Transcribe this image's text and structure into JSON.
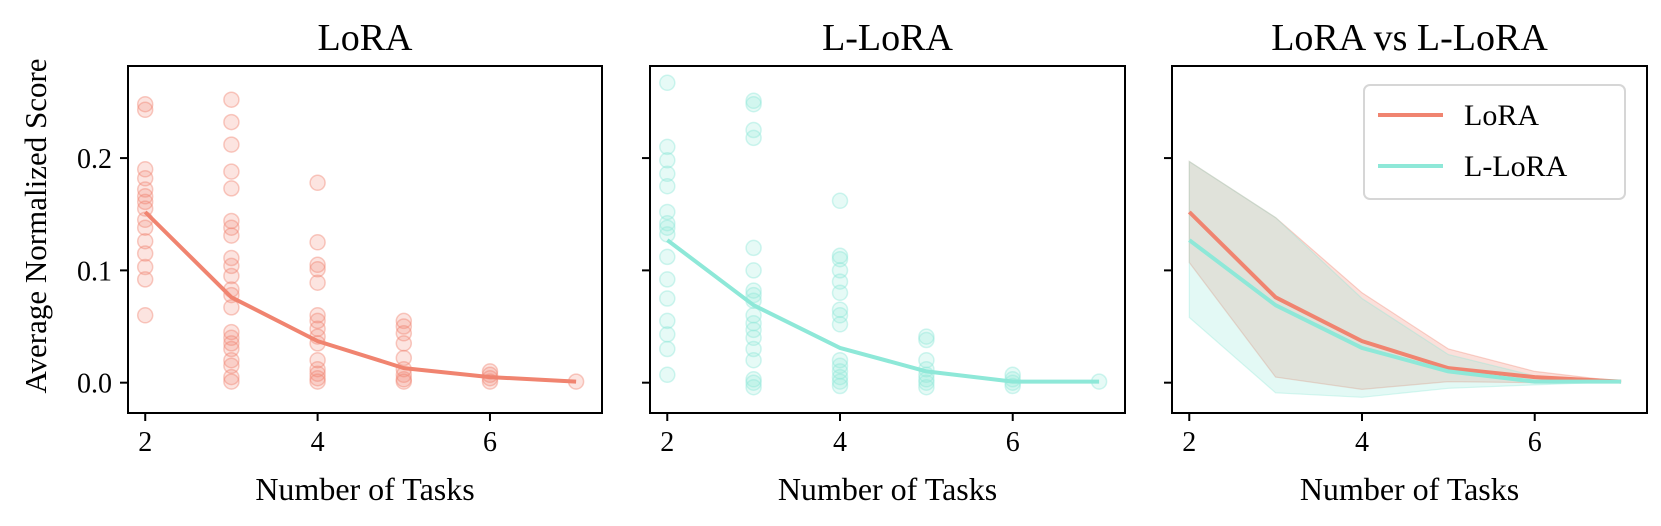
{
  "colors": {
    "lora": "#F08470",
    "llora": "#8EE8D8"
  },
  "figure": {
    "ylabel": "Average Normalized Score"
  },
  "chart_data": [
    {
      "type": "scatter",
      "title": "LoRA",
      "xlabel": "Number of Tasks",
      "ylabel": "Average Normalized Score",
      "xlim": [
        1.8,
        7.3
      ],
      "ylim": [
        -0.027,
        0.282
      ],
      "xticks": [
        2,
        4,
        6
      ],
      "yticks": [
        0.0,
        0.1,
        0.2
      ],
      "ytick_labels": [
        "0.0",
        "0.1",
        "0.2"
      ],
      "series": [
        {
          "color": "#F08470",
          "points": [
            [
              2,
              0.248
            ],
            [
              2,
              0.243
            ],
            [
              2,
              0.19
            ],
            [
              2,
              0.182
            ],
            [
              2,
              0.172
            ],
            [
              2,
              0.166
            ],
            [
              2,
              0.161
            ],
            [
              2,
              0.155
            ],
            [
              2,
              0.145
            ],
            [
              2,
              0.138
            ],
            [
              2,
              0.126
            ],
            [
              2,
              0.115
            ],
            [
              2,
              0.103
            ],
            [
              2,
              0.092
            ],
            [
              2,
              0.06
            ],
            [
              3,
              0.252
            ],
            [
              3,
              0.232
            ],
            [
              3,
              0.212
            ],
            [
              3,
              0.188
            ],
            [
              3,
              0.173
            ],
            [
              3,
              0.144
            ],
            [
              3,
              0.138
            ],
            [
              3,
              0.131
            ],
            [
              3,
              0.111
            ],
            [
              3,
              0.104
            ],
            [
              3,
              0.095
            ],
            [
              3,
              0.083
            ],
            [
              3,
              0.078
            ],
            [
              3,
              0.067
            ],
            [
              3,
              0.045
            ],
            [
              3,
              0.04
            ],
            [
              3,
              0.035
            ],
            [
              3,
              0.03
            ],
            [
              3,
              0.02
            ],
            [
              3,
              0.015
            ],
            [
              3,
              0.005
            ],
            [
              3,
              0.001
            ],
            [
              4,
              0.178
            ],
            [
              4,
              0.125
            ],
            [
              4,
              0.105
            ],
            [
              4,
              0.101
            ],
            [
              4,
              0.089
            ],
            [
              4,
              0.06
            ],
            [
              4,
              0.055
            ],
            [
              4,
              0.048
            ],
            [
              4,
              0.041
            ],
            [
              4,
              0.035
            ],
            [
              4,
              0.02
            ],
            [
              4,
              0.012
            ],
            [
              4,
              0.008
            ],
            [
              4,
              0.004
            ],
            [
              4,
              0.001
            ],
            [
              5,
              0.055
            ],
            [
              5,
              0.05
            ],
            [
              5,
              0.044
            ],
            [
              5,
              0.035
            ],
            [
              5,
              0.022
            ],
            [
              5,
              0.012
            ],
            [
              5,
              0.007
            ],
            [
              5,
              0.003
            ],
            [
              5,
              0.001
            ],
            [
              6,
              0.01
            ],
            [
              6,
              0.007
            ],
            [
              6,
              0.004
            ],
            [
              6,
              0.001
            ],
            [
              7,
              0.001
            ]
          ]
        },
        {
          "type": "line",
          "color": "#F08470",
          "x": [
            2,
            3,
            4,
            5,
            6,
            7
          ],
          "y": [
            0.152,
            0.076,
            0.037,
            0.013,
            0.005,
            0.001
          ]
        }
      ]
    },
    {
      "type": "scatter",
      "title": "L-LoRA",
      "xlabel": "Number of Tasks",
      "xlim": [
        1.8,
        7.3
      ],
      "ylim": [
        -0.027,
        0.282
      ],
      "xticks": [
        2,
        4,
        6
      ],
      "yticks": [
        0.0,
        0.1,
        0.2
      ],
      "series": [
        {
          "color": "#8EE8D8",
          "points": [
            [
              2,
              0.267
            ],
            [
              2,
              0.21
            ],
            [
              2,
              0.198
            ],
            [
              2,
              0.186
            ],
            [
              2,
              0.175
            ],
            [
              2,
              0.152
            ],
            [
              2,
              0.142
            ],
            [
              2,
              0.138
            ],
            [
              2,
              0.132
            ],
            [
              2,
              0.112
            ],
            [
              2,
              0.092
            ],
            [
              2,
              0.075
            ],
            [
              2,
              0.055
            ],
            [
              2,
              0.043
            ],
            [
              2,
              0.03
            ],
            [
              2,
              0.007
            ],
            [
              3,
              0.251
            ],
            [
              3,
              0.248
            ],
            [
              3,
              0.225
            ],
            [
              3,
              0.218
            ],
            [
              3,
              0.12
            ],
            [
              3,
              0.1
            ],
            [
              3,
              0.082
            ],
            [
              3,
              0.078
            ],
            [
              3,
              0.073
            ],
            [
              3,
              0.06
            ],
            [
              3,
              0.053
            ],
            [
              3,
              0.047
            ],
            [
              3,
              0.04
            ],
            [
              3,
              0.03
            ],
            [
              3,
              0.02
            ],
            [
              3,
              0.003
            ],
            [
              3,
              0.0
            ],
            [
              3,
              -0.004
            ],
            [
              4,
              0.162
            ],
            [
              4,
              0.113
            ],
            [
              4,
              0.11
            ],
            [
              4,
              0.1
            ],
            [
              4,
              0.09
            ],
            [
              4,
              0.08
            ],
            [
              4,
              0.065
            ],
            [
              4,
              0.06
            ],
            [
              4,
              0.052
            ],
            [
              4,
              0.02
            ],
            [
              4,
              0.015
            ],
            [
              4,
              0.01
            ],
            [
              4,
              0.005
            ],
            [
              4,
              0.001
            ],
            [
              4,
              -0.003
            ],
            [
              5,
              0.041
            ],
            [
              5,
              0.038
            ],
            [
              5,
              0.02
            ],
            [
              5,
              0.012
            ],
            [
              5,
              0.007
            ],
            [
              5,
              0.003
            ],
            [
              5,
              0.0
            ],
            [
              5,
              -0.004
            ],
            [
              6,
              0.007
            ],
            [
              6,
              0.003
            ],
            [
              6,
              0.0
            ],
            [
              6,
              -0.003
            ],
            [
              7,
              0.001
            ]
          ]
        },
        {
          "type": "line",
          "color": "#8EE8D8",
          "x": [
            2,
            3,
            4,
            5,
            6,
            7
          ],
          "y": [
            0.127,
            0.069,
            0.031,
            0.01,
            0.001,
            0.001
          ]
        }
      ]
    },
    {
      "type": "area",
      "title": "LoRA vs L-LoRA",
      "xlabel": "Number of Tasks",
      "xlim": [
        1.8,
        7.3
      ],
      "ylim": [
        -0.027,
        0.282
      ],
      "xticks": [
        2,
        4,
        6
      ],
      "yticks": [
        0.0,
        0.1,
        0.2
      ],
      "legend": "top-right",
      "series": [
        {
          "name": "LoRA",
          "color": "#F08470",
          "x": [
            2,
            3,
            4,
            5,
            6,
            7
          ],
          "y": [
            0.152,
            0.076,
            0.037,
            0.013,
            0.005,
            0.001
          ],
          "upper": [
            0.197,
            0.147,
            0.08,
            0.03,
            0.01,
            0.001
          ],
          "lower": [
            0.107,
            0.005,
            -0.006,
            0.001,
            0.0,
            0.001
          ]
        },
        {
          "name": "L-LoRA",
          "color": "#8EE8D8",
          "x": [
            2,
            3,
            4,
            5,
            6,
            7
          ],
          "y": [
            0.127,
            0.069,
            0.031,
            0.01,
            0.001,
            0.001
          ],
          "upper": [
            0.197,
            0.147,
            0.075,
            0.025,
            0.006,
            0.001
          ],
          "lower": [
            0.058,
            -0.009,
            -0.013,
            -0.005,
            -0.002,
            0.001
          ]
        }
      ]
    }
  ]
}
